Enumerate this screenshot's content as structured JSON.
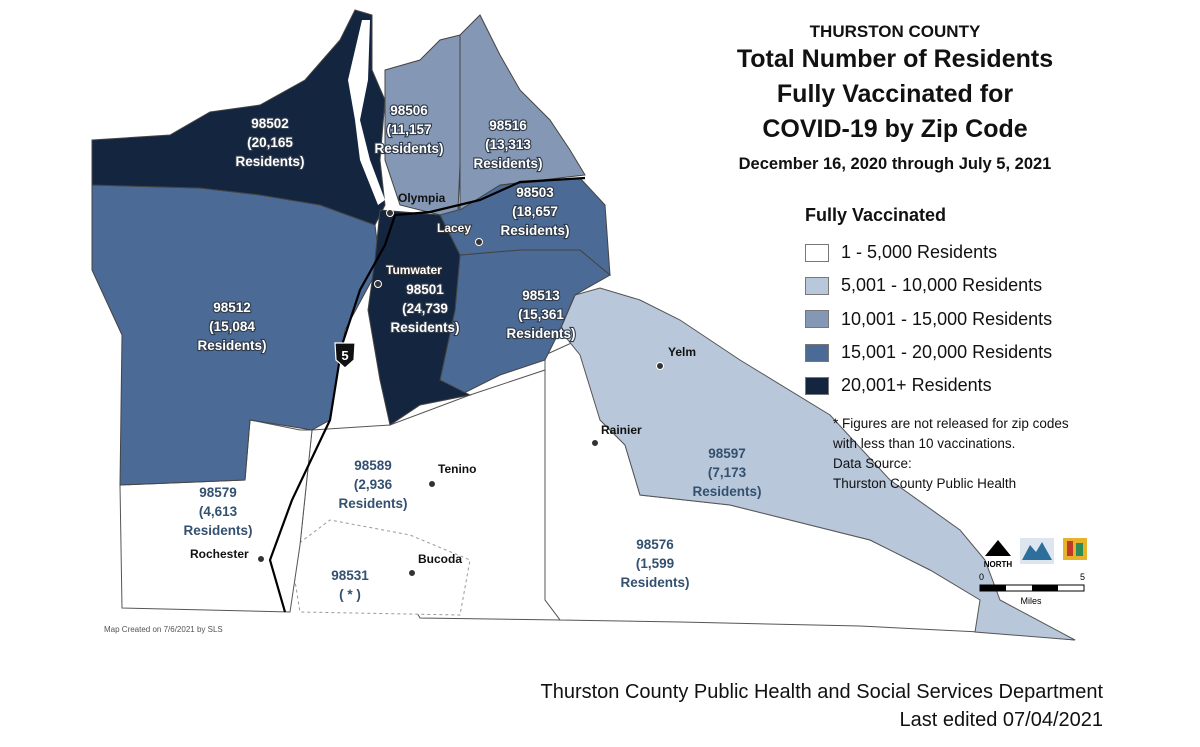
{
  "title": {
    "county": "THURSTON COUNTY",
    "lines": [
      "Total Number of Residents",
      "Fully Vaccinated for",
      "COVID-19 by Zip Code"
    ],
    "date_range": "December 16, 2020 through July 5, 2021"
  },
  "legend": {
    "title": "Fully Vaccinated",
    "items": [
      {
        "label": "1 - 5,000 Residents",
        "color": "#ffffff"
      },
      {
        "label": "5,001 - 10,000 Residents",
        "color": "#b8c7da"
      },
      {
        "label": "10,001 - 15,000 Residents",
        "color": "#8497b4"
      },
      {
        "label": "15,001 - 20,000 Residents",
        "color": "#4b6a95"
      },
      {
        "label": "20,001+ Residents",
        "color": "#14253f"
      }
    ]
  },
  "notes": {
    "footnote": "* Figures are not released for zip codes with less than 10 vaccinations.",
    "source_label": "Data Source:",
    "source": "Thurston County Public Health"
  },
  "zips": [
    {
      "zip": "98502",
      "count": "(20,165",
      "unit": "Residents)",
      "tier": 4
    },
    {
      "zip": "98506",
      "count": "(11,157",
      "unit": "Residents)",
      "tier": 2
    },
    {
      "zip": "98516",
      "count": "(13,313",
      "unit": "Residents)",
      "tier": 2
    },
    {
      "zip": "98503",
      "count": "(18,657",
      "unit": "Residents)",
      "tier": 3
    },
    {
      "zip": "98501",
      "count": "(24,739",
      "unit": "Residents)",
      "tier": 4
    },
    {
      "zip": "98512",
      "count": "(15,084",
      "unit": "Residents)",
      "tier": 3
    },
    {
      "zip": "98513",
      "count": "(15,361",
      "unit": "Residents)",
      "tier": 3
    },
    {
      "zip": "98597",
      "count": "(7,173",
      "unit": "Residents)",
      "tier": 1
    },
    {
      "zip": "98589",
      "count": "(2,936",
      "unit": "Residents)",
      "tier": 0
    },
    {
      "zip": "98579",
      "count": "(4,613",
      "unit": "Residents)",
      "tier": 0
    },
    {
      "zip": "98576",
      "count": "(1,599",
      "unit": "Residents)",
      "tier": 0
    },
    {
      "zip": "98531",
      "count": "( * )",
      "unit": "",
      "tier": 0
    }
  ],
  "cities": [
    "Olympia",
    "Lacey",
    "Tumwater",
    "Yelm",
    "Rainier",
    "Tenino",
    "Bucoda",
    "Rochester"
  ],
  "highway": "5",
  "north_label": "NORTH",
  "scale": {
    "start": "0",
    "end": "5",
    "unit": "Miles"
  },
  "credit": "Map Created on 7/6/2021 by SLS",
  "footer": {
    "department": "Thurston County Public Health and Social Services Department",
    "edited": "Last edited 07/04/2021"
  }
}
